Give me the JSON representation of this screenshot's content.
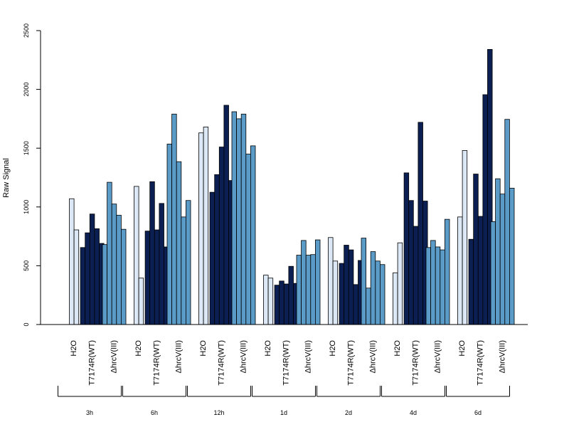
{
  "chart_data": {
    "type": "bar",
    "title": "",
    "xlabel": "",
    "ylabel": "Raw Signal",
    "ylim": [
      0,
      2500
    ],
    "yticks": [
      0,
      500,
      1000,
      1500,
      2000,
      2500
    ],
    "grid": false,
    "legend": "none",
    "treatments": [
      {
        "label": "H2O",
        "color": "#dce8f5"
      },
      {
        "label": "T7174R(WT)",
        "color": "#0b1f52"
      },
      {
        "label": "ΔhrcV(III)",
        "color": "#5b9bc8"
      }
    ],
    "time_points": [
      {
        "label": "3h",
        "values": [
          [
            1070,
            805
          ],
          [
            655,
            780,
            940,
            815,
            690
          ],
          [
            680,
            1210,
            1025,
            930,
            810
          ]
        ]
      },
      {
        "label": "6h",
        "values": [
          [
            1175,
            395
          ],
          [
            795,
            1215,
            805,
            1030,
            660
          ],
          [
            1535,
            1790,
            1385,
            915,
            1055
          ]
        ]
      },
      {
        "label": "12h",
        "values": [
          [
            1630,
            1680
          ],
          [
            1125,
            1275,
            1510,
            1865,
            1225
          ],
          [
            1810,
            1750,
            1790,
            1450,
            1520
          ]
        ]
      },
      {
        "label": "1d",
        "values": [
          [
            420,
            395
          ],
          [
            335,
            370,
            345,
            495,
            350
          ],
          [
            590,
            715,
            590,
            595,
            720
          ]
        ]
      },
      {
        "label": "2d",
        "values": [
          [
            740,
            540
          ],
          [
            520,
            675,
            635,
            340,
            545
          ],
          [
            735,
            310,
            620,
            540,
            510
          ]
        ]
      },
      {
        "label": "4d",
        "values": [
          [
            440,
            695
          ],
          [
            1290,
            1055,
            835,
            1720,
            1050
          ],
          [
            655,
            715,
            660,
            635,
            895
          ]
        ]
      },
      {
        "label": "6d",
        "values": [
          [
            915,
            1480
          ],
          [
            725,
            1280,
            920,
            1955,
            2340
          ],
          [
            875,
            1240,
            1110,
            1745,
            1160
          ]
        ]
      }
    ]
  },
  "colors": {
    "axis": "#000000",
    "bar_border": "#000000"
  }
}
